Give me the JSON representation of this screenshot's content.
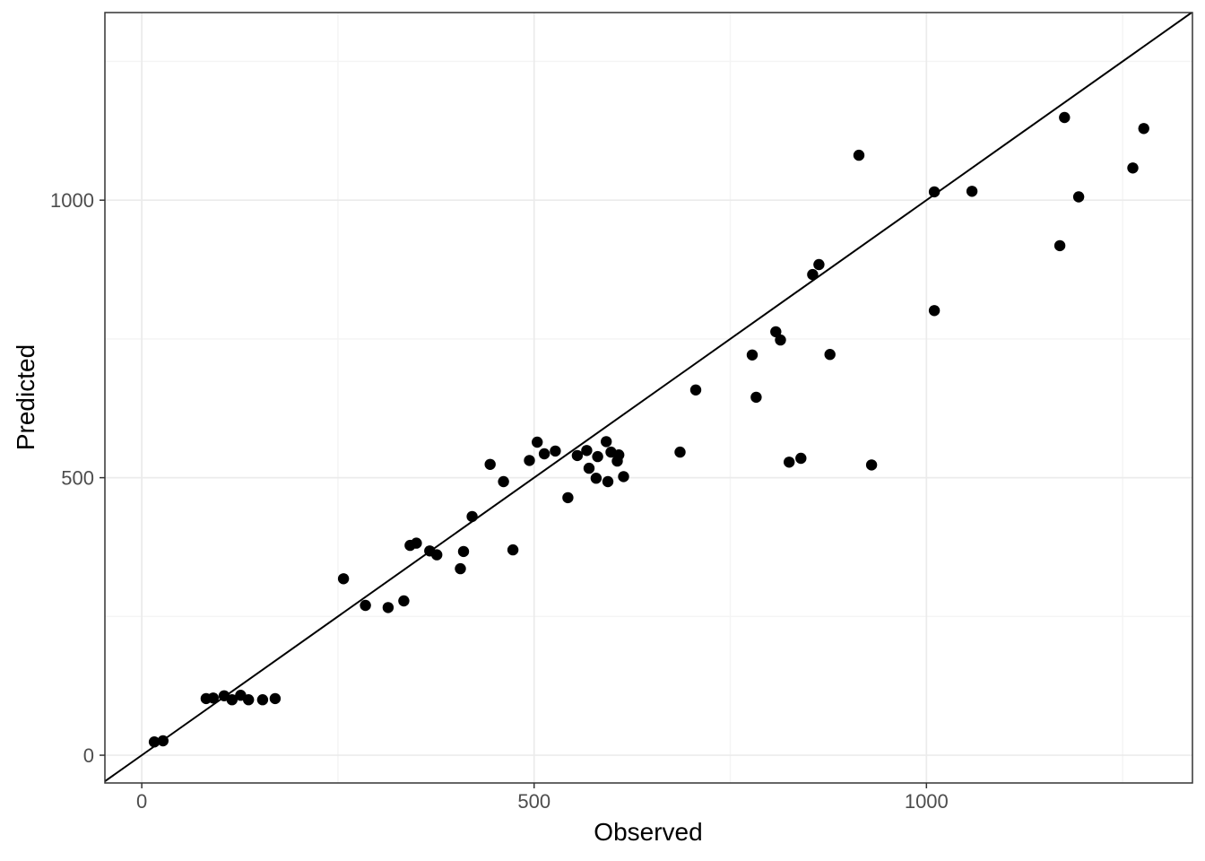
{
  "figure": {
    "background": "#FFFFFF",
    "panel_background": "#FFFFFF",
    "panel_border_color": "#333333",
    "grid_major_color": "#EBEBEB",
    "grid_minor_color": "#F4F4F4",
    "tick_mark_color": "#333333",
    "tick_label_color": "#4D4D4D",
    "axis_title_color": "#000000",
    "point_color": "#000000",
    "reference_line_color": "#000000"
  },
  "chart_data": {
    "type": "scatter",
    "title": "",
    "xlabel": "Observed",
    "ylabel": "Predicted",
    "x_ticks": [
      0,
      500,
      1000
    ],
    "y_ticks": [
      0,
      500,
      1000
    ],
    "x_tick_labels": [
      "0",
      "500",
      "1000"
    ],
    "y_tick_labels": [
      "0",
      "500",
      "1000"
    ],
    "x_minor_ticks": [
      250,
      750,
      1250
    ],
    "y_minor_ticks": [
      250,
      750,
      1250
    ],
    "xlim": [
      -47,
      1339
    ],
    "ylim": [
      -50,
      1338
    ],
    "grid": true,
    "legend": "none",
    "reference_line": {
      "type": "identity",
      "slope": 1,
      "intercept": 0
    },
    "points": [
      [
        16,
        24
      ],
      [
        27,
        26
      ],
      [
        82,
        102
      ],
      [
        91,
        103
      ],
      [
        105,
        107
      ],
      [
        115,
        100
      ],
      [
        126,
        108
      ],
      [
        136,
        100
      ],
      [
        154,
        100
      ],
      [
        170,
        102
      ],
      [
        257,
        318
      ],
      [
        285,
        270
      ],
      [
        314,
        266
      ],
      [
        334,
        278
      ],
      [
        342,
        378
      ],
      [
        350,
        382
      ],
      [
        367,
        368
      ],
      [
        376,
        361
      ],
      [
        406,
        336
      ],
      [
        410,
        367
      ],
      [
        421,
        430
      ],
      [
        444,
        524
      ],
      [
        461,
        493
      ],
      [
        473,
        370
      ],
      [
        494,
        531
      ],
      [
        504,
        564
      ],
      [
        513,
        543
      ],
      [
        527,
        548
      ],
      [
        543,
        464
      ],
      [
        555,
        540
      ],
      [
        567,
        549
      ],
      [
        570,
        517
      ],
      [
        579,
        499
      ],
      [
        581,
        538
      ],
      [
        592,
        565
      ],
      [
        594,
        493
      ],
      [
        598,
        546
      ],
      [
        606,
        530
      ],
      [
        608,
        541
      ],
      [
        614,
        502
      ],
      [
        686,
        546
      ],
      [
        706,
        658
      ],
      [
        778,
        721
      ],
      [
        783,
        645
      ],
      [
        808,
        763
      ],
      [
        814,
        748
      ],
      [
        825,
        528
      ],
      [
        840,
        535
      ],
      [
        855,
        866
      ],
      [
        863,
        884
      ],
      [
        877,
        722
      ],
      [
        914,
        1081
      ],
      [
        930,
        523
      ],
      [
        1010,
        1015
      ],
      [
        1010,
        801
      ],
      [
        1058,
        1016
      ],
      [
        1170,
        918
      ],
      [
        1176,
        1149
      ],
      [
        1194,
        1006
      ],
      [
        1263,
        1058
      ],
      [
        1277,
        1129
      ]
    ]
  }
}
